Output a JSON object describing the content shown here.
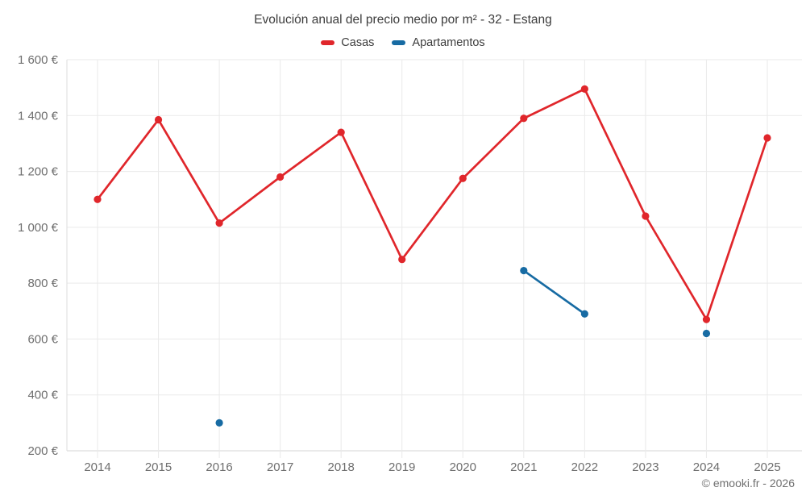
{
  "title": "Evolución anual del precio medio por m² - 32 - Estang",
  "footer": {
    "copyright": "© emooki.fr - 2026"
  },
  "colors": {
    "casas": "#e0262b",
    "apartamentos": "#176ba3",
    "grid": "#eaeaea",
    "axis_left": "#dedede",
    "axis_bottom": "#d4d4d4",
    "tick_text": "#6e6e6e",
    "title_text": "#3c3c3c"
  },
  "chart_data": {
    "type": "line",
    "title": "Evolución anual del precio medio por m² - 32 - Estang",
    "xlabel": "",
    "ylabel": "",
    "x": [
      "2014",
      "2015",
      "2016",
      "2017",
      "2018",
      "2019",
      "2020",
      "2021",
      "2022",
      "2023",
      "2024",
      "2025"
    ],
    "series": [
      {
        "name": "Casas",
        "color": "#e0262b",
        "values": [
          1100,
          1385,
          1015,
          1180,
          1340,
          885,
          1175,
          1390,
          1495,
          1040,
          670,
          1320
        ]
      },
      {
        "name": "Apartamentos",
        "color": "#176ba3",
        "values": [
          null,
          null,
          300,
          null,
          null,
          null,
          null,
          845,
          690,
          null,
          620,
          null
        ]
      }
    ],
    "ylim": [
      200,
      1600
    ],
    "yticks": [
      200,
      400,
      600,
      800,
      1000,
      1200,
      1400,
      1600
    ],
    "ytick_labels": [
      "200 €",
      "400 €",
      "600 €",
      "800 €",
      "1 000 €",
      "1 200 €",
      "1 400 €",
      "1 600 €"
    ],
    "grid": true,
    "legend_position": "top",
    "annotations": [
      "© emooki.fr - 2026"
    ]
  }
}
